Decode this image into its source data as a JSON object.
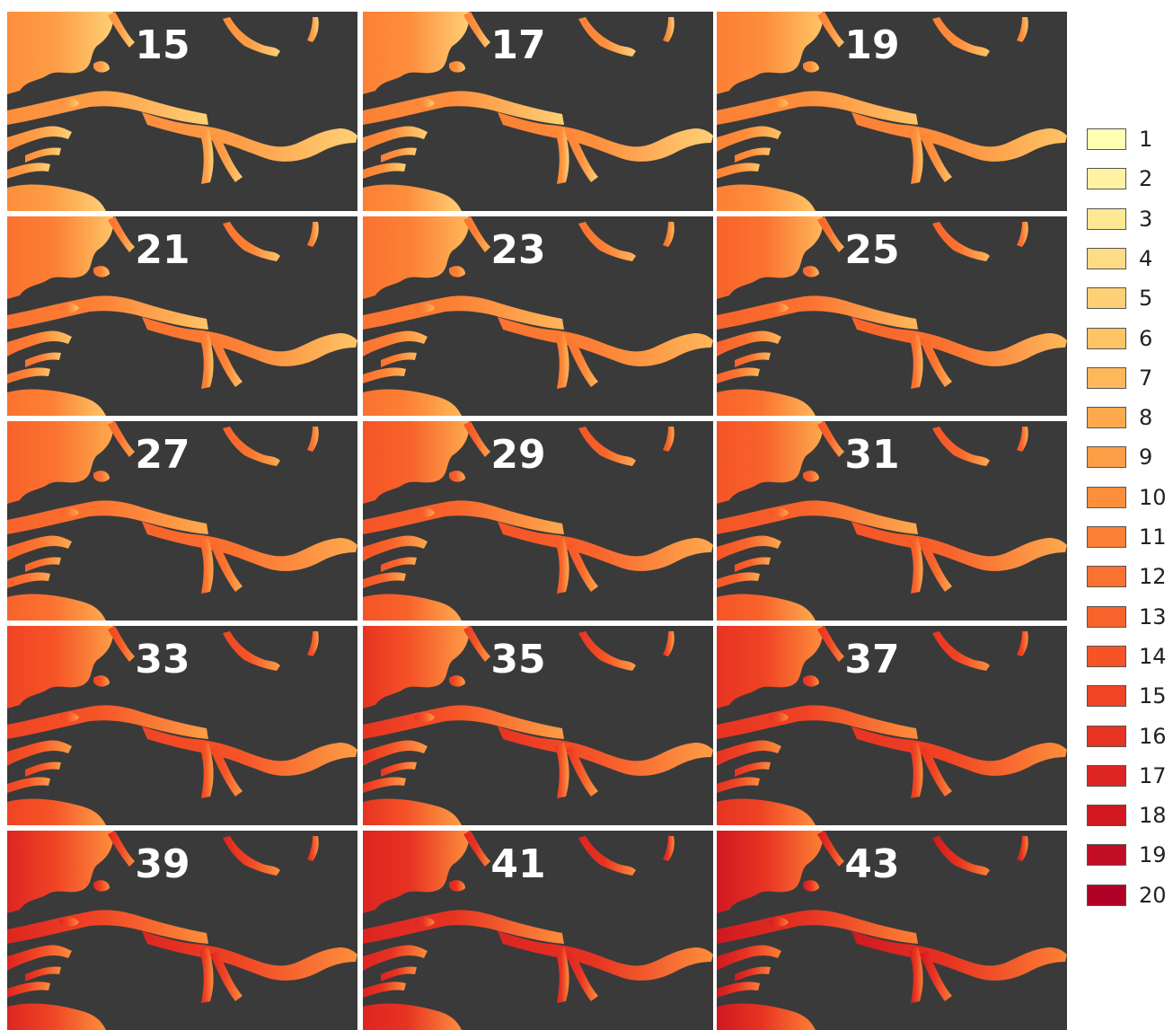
{
  "panels": [
    {
      "label": "15",
      "stage": 0
    },
    {
      "label": "17",
      "stage": 1
    },
    {
      "label": "19",
      "stage": 2
    },
    {
      "label": "21",
      "stage": 3
    },
    {
      "label": "23",
      "stage": 4
    },
    {
      "label": "25",
      "stage": 5
    },
    {
      "label": "27",
      "stage": 6
    },
    {
      "label": "29",
      "stage": 7
    },
    {
      "label": "31",
      "stage": 8
    },
    {
      "label": "33",
      "stage": 9
    },
    {
      "label": "35",
      "stage": 10
    },
    {
      "label": "37",
      "stage": 11
    },
    {
      "label": "39",
      "stage": 12
    },
    {
      "label": "41",
      "stage": 13
    },
    {
      "label": "43",
      "stage": 14
    }
  ],
  "legend": [
    {
      "label": "1",
      "color": "#ffffb2"
    },
    {
      "label": "2",
      "color": "#fff3a3"
    },
    {
      "label": "3",
      "color": "#fee894"
    },
    {
      "label": "4",
      "color": "#fedc85"
    },
    {
      "label": "5",
      "color": "#fed076"
    },
    {
      "label": "6",
      "color": "#fec466"
    },
    {
      "label": "7",
      "color": "#feb75a"
    },
    {
      "label": "8",
      "color": "#fdaa4f"
    },
    {
      "label": "9",
      "color": "#fd9d46"
    },
    {
      "label": "10",
      "color": "#fd8e3c"
    },
    {
      "label": "11",
      "color": "#fc8035"
    },
    {
      "label": "12",
      "color": "#fb7230"
    },
    {
      "label": "13",
      "color": "#f8632b"
    },
    {
      "label": "14",
      "color": "#f55427"
    },
    {
      "label": "15",
      "color": "#f04424"
    },
    {
      "label": "16",
      "color": "#e73322"
    },
    {
      "label": "17",
      "color": "#dd2521"
    },
    {
      "label": "18",
      "color": "#d01920"
    },
    {
      "label": "19",
      "color": "#c10e24"
    },
    {
      "label": "20",
      "color": "#b10026"
    }
  ],
  "colors": {
    "background": "#3a3a3a",
    "label_text": "#ffffff"
  }
}
